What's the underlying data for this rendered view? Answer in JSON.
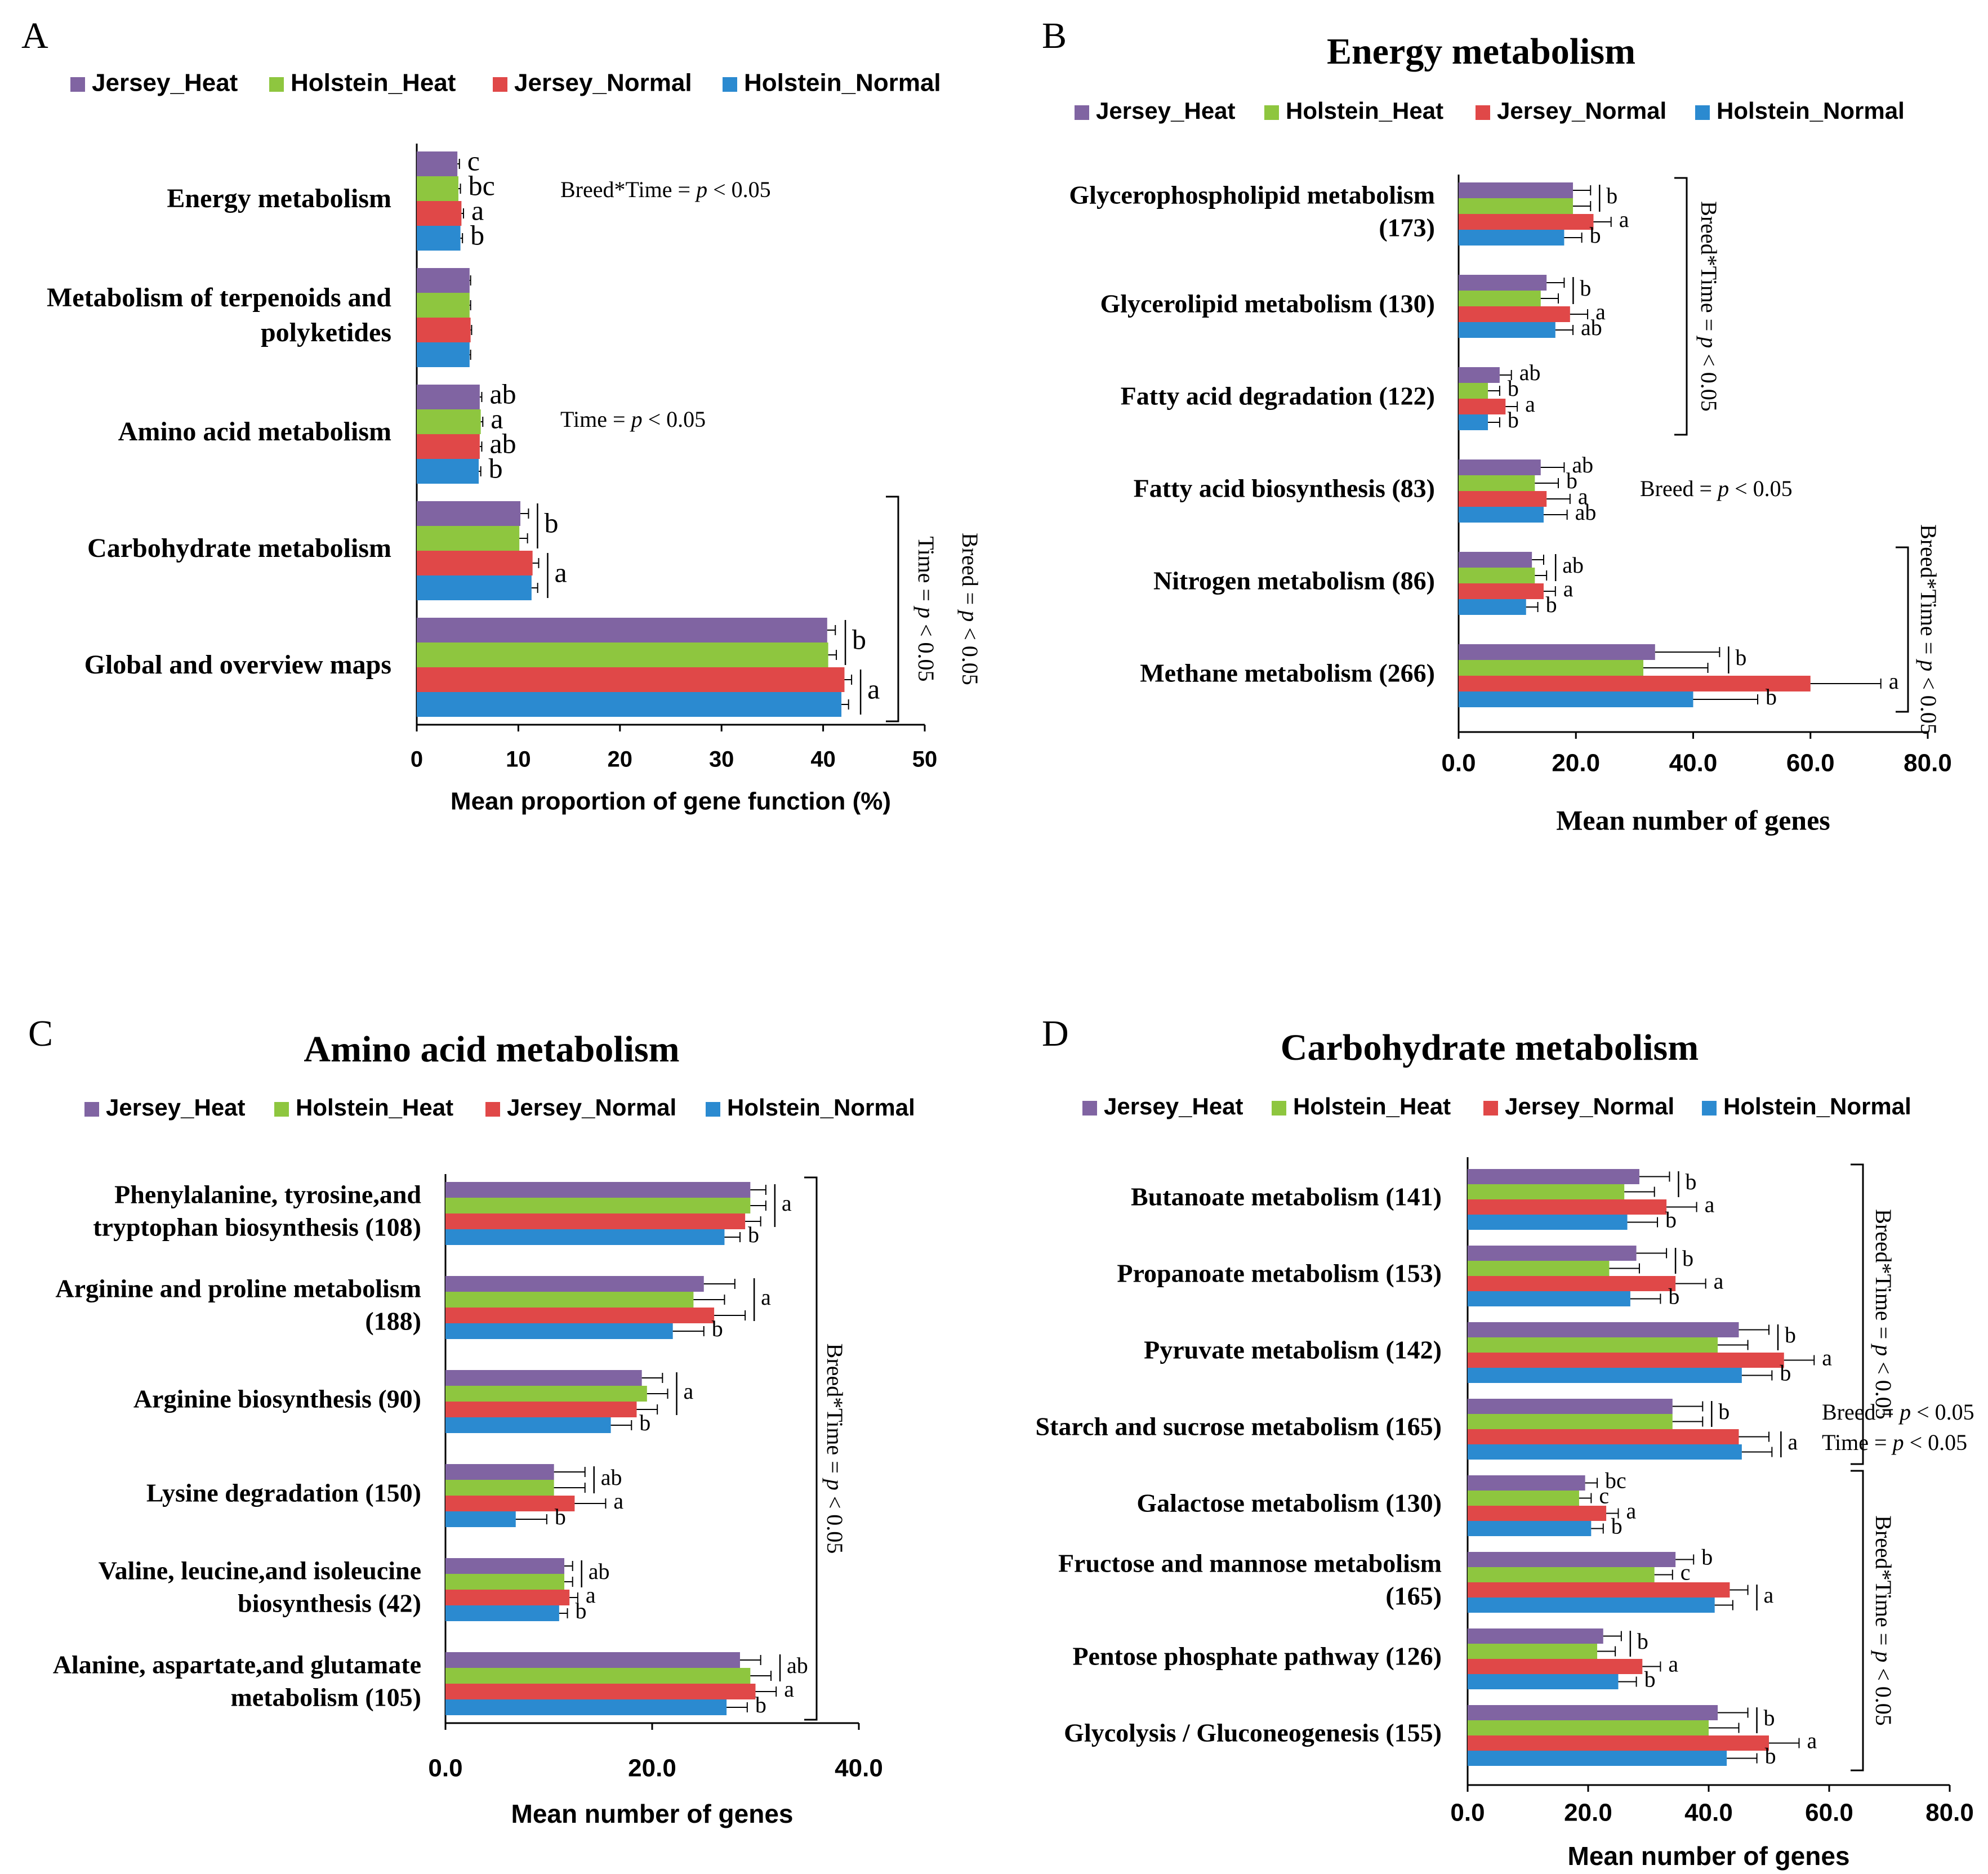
{
  "colors": {
    "Jersey_Heat": "#8064a2",
    "Holstein_Heat": "#8ec63f",
    "Jersey_Normal": "#e04848",
    "Holstein_Normal": "#2b8ad0",
    "axis": "#000000",
    "text": "#000000"
  },
  "chart_data": [
    {
      "panel": "A",
      "type": "bar",
      "orientation": "horizontal",
      "title": "",
      "xlabel": "Mean proportion of gene function (%)",
      "ylabel": "",
      "xlim": [
        0,
        50
      ],
      "xticks": [
        0,
        10,
        20,
        30,
        40,
        50
      ],
      "tick_labels": [
        "0",
        "10",
        "20",
        "30",
        "40",
        "50"
      ],
      "legend": [
        "Jersey_Heat",
        "Holstein_Heat",
        "Jersey_Normal",
        "Holstein_Normal"
      ],
      "legend_position": "top",
      "categories": [
        {
          "label_lines": [
            "Energy metabolism"
          ],
          "values": [
            4.0,
            4.1,
            4.4,
            4.3
          ],
          "errors": [
            0.2,
            0.2,
            0.2,
            0.2
          ],
          "letters": [
            "c",
            "bc",
            "a",
            "b"
          ],
          "groups": []
        },
        {
          "label_lines": [
            "Metabolism of terpenoids and",
            "polyketides"
          ],
          "values": [
            5.2,
            5.2,
            5.3,
            5.2
          ],
          "errors": [
            0.1,
            0.1,
            0.1,
            0.1
          ],
          "letters": [
            "",
            "",
            "",
            ""
          ],
          "groups": []
        },
        {
          "label_lines": [
            "Amino acid metabolism"
          ],
          "values": [
            6.2,
            6.3,
            6.2,
            6.1
          ],
          "errors": [
            0.2,
            0.2,
            0.2,
            0.2
          ],
          "letters": [
            "ab",
            "a",
            "ab",
            "b"
          ],
          "groups": []
        },
        {
          "label_lines": [
            "Carbohydrate metabolism"
          ],
          "values": [
            10.2,
            10.1,
            11.4,
            11.3
          ],
          "errors": [
            0.8,
            0.8,
            0.6,
            0.6
          ],
          "letters": [
            "",
            "",
            "",
            ""
          ],
          "groups": [
            {
              "start": 0,
              "end": 1,
              "letter": "b"
            },
            {
              "start": 2,
              "end": 3,
              "letter": "a"
            }
          ]
        },
        {
          "label_lines": [
            "Global and overview maps"
          ],
          "values": [
            40.4,
            40.5,
            42.1,
            41.8
          ],
          "errors": [
            0.8,
            0.8,
            0.7,
            0.7
          ],
          "letters": [
            "",
            "",
            "",
            ""
          ],
          "groups": [
            {
              "start": 0,
              "end": 1,
              "letter": "b"
            },
            {
              "start": 2,
              "end": 3,
              "letter": "a"
            }
          ]
        }
      ],
      "annotations": [
        {
          "text": "Breed*Time = p < 0.05",
          "category": 0
        },
        {
          "text": "Time = p < 0.05",
          "category": 2
        }
      ],
      "significance_brackets": [
        {
          "from": 3,
          "to": 4,
          "texts": [
            "Time = p < 0.05",
            "Breed = p < 0.05"
          ]
        }
      ]
    },
    {
      "panel": "B",
      "type": "bar",
      "orientation": "horizontal",
      "title": "Energy metabolism",
      "xlabel": "Mean number of genes",
      "ylabel": "",
      "xlim": [
        0,
        80
      ],
      "xticks": [
        0,
        20,
        40,
        60,
        80
      ],
      "tick_labels": [
        "0.0",
        "20.0",
        "40.0",
        "60.0",
        "80.0"
      ],
      "legend": [
        "Jersey_Heat",
        "Holstein_Heat",
        "Jersey_Normal",
        "Holstein_Normal"
      ],
      "legend_position": "top",
      "categories": [
        {
          "label_lines": [
            "Glycerophospholipid metabolism",
            "(173)"
          ],
          "values": [
            19.5,
            19.5,
            23,
            18
          ],
          "errors": [
            3,
            3,
            3,
            3
          ],
          "letters": [
            "",
            "",
            "a",
            "b"
          ],
          "groups": [
            {
              "start": 0,
              "end": 1,
              "letter": "b"
            }
          ]
        },
        {
          "label_lines": [
            "Glycerolipid metabolism (130)"
          ],
          "values": [
            15,
            14,
            19,
            16.5
          ],
          "errors": [
            3,
            3,
            3,
            3
          ],
          "letters": [
            "",
            "",
            "a",
            "ab"
          ],
          "groups": [
            {
              "start": 0,
              "end": 1,
              "letter": "b"
            }
          ]
        },
        {
          "label_lines": [
            "Fatty acid degradation (122)"
          ],
          "values": [
            7,
            5,
            8,
            5
          ],
          "errors": [
            2,
            2,
            2,
            2
          ],
          "letters": [
            "ab",
            "b",
            "a",
            "b"
          ],
          "groups": []
        },
        {
          "label_lines": [
            "Fatty acid biosynthesis (83)"
          ],
          "values": [
            14,
            13,
            15,
            14.5
          ],
          "errors": [
            4,
            4,
            4,
            4
          ],
          "letters": [
            "ab",
            "b",
            "a",
            "ab"
          ],
          "groups": []
        },
        {
          "label_lines": [
            "Nitrogen metabolism (86)"
          ],
          "values": [
            12.5,
            13,
            14.5,
            11.5
          ],
          "errors": [
            2,
            2,
            2,
            2
          ],
          "letters": [
            "",
            "",
            "a",
            "b"
          ],
          "groups": [
            {
              "start": 0,
              "end": 1,
              "letter": "ab"
            }
          ]
        },
        {
          "label_lines": [
            "Methane metabolism (266)"
          ],
          "values": [
            33.5,
            31.5,
            60,
            40
          ],
          "errors": [
            11,
            11,
            12,
            11
          ],
          "letters": [
            "",
            "",
            "a",
            "b"
          ],
          "groups": [
            {
              "start": 0,
              "end": 1,
              "letter": "b"
            }
          ]
        }
      ],
      "annotations": [
        {
          "text": "Breed = p < 0.05",
          "category": 3
        }
      ],
      "significance_brackets": [
        {
          "from": 0,
          "to": 2,
          "texts": [
            "Breed*Time = p < 0.05"
          ]
        },
        {
          "from": 4,
          "to": 5,
          "texts": [
            "Breed*Time = p < 0.05"
          ]
        }
      ]
    },
    {
      "panel": "C",
      "type": "bar",
      "orientation": "horizontal",
      "title": "Amino acid metabolism",
      "xlabel": "Mean number of genes",
      "ylabel": "",
      "xlim": [
        0,
        40
      ],
      "xticks": [
        0,
        20,
        40
      ],
      "tick_labels": [
        "0.0",
        "20.0",
        "40.0"
      ],
      "legend": [
        "Jersey_Heat",
        "Holstein_Heat",
        "Jersey_Normal",
        "Holstein_Normal"
      ],
      "legend_position": "top",
      "categories": [
        {
          "label_lines": [
            "Phenylalanine, tyrosine,and",
            "tryptophan biosynthesis (108)"
          ],
          "values": [
            29.5,
            29.5,
            29,
            27
          ],
          "errors": [
            1.5,
            1.5,
            1.5,
            1.5
          ],
          "letters": [
            "",
            "",
            "",
            "b"
          ],
          "groups": [
            {
              "start": 0,
              "end": 2,
              "letter": "a"
            }
          ]
        },
        {
          "label_lines": [
            "Arginine and proline metabolism",
            "(188)"
          ],
          "values": [
            25,
            24,
            26,
            22
          ],
          "errors": [
            3,
            3,
            3,
            3
          ],
          "letters": [
            "",
            "",
            "",
            "b"
          ],
          "groups": [
            {
              "start": 0,
              "end": 2,
              "letter": "a"
            }
          ]
        },
        {
          "label_lines": [
            "Arginine biosynthesis (90)"
          ],
          "values": [
            19,
            19.5,
            18.5,
            16
          ],
          "errors": [
            2,
            2,
            2,
            2
          ],
          "letters": [
            "",
            "",
            "",
            "b"
          ],
          "groups": [
            {
              "start": 0,
              "end": 2,
              "letter": "a"
            }
          ]
        },
        {
          "label_lines": [
            "Lysine degradation (150)"
          ],
          "values": [
            10.5,
            10.5,
            12.5,
            6.8
          ],
          "errors": [
            3,
            3,
            3,
            3
          ],
          "letters": [
            "",
            "",
            "a",
            "b"
          ],
          "groups": [
            {
              "start": 0,
              "end": 1,
              "letter": "ab"
            }
          ]
        },
        {
          "label_lines": [
            "Valine, leucine,and isoleucine",
            "biosynthesis (42)"
          ],
          "values": [
            11.5,
            11.5,
            12,
            11
          ],
          "errors": [
            0.8,
            0.8,
            0.8,
            0.8
          ],
          "letters": [
            "",
            "",
            "a",
            "b"
          ],
          "groups": [
            {
              "start": 0,
              "end": 1,
              "letter": "ab"
            }
          ]
        },
        {
          "label_lines": [
            "Alanine, aspartate,and glutamate",
            "metabolism (105)"
          ],
          "values": [
            28.5,
            29.5,
            30,
            27.2
          ],
          "errors": [
            2,
            2,
            2,
            2
          ],
          "letters": [
            "",
            "",
            "a",
            "b"
          ],
          "groups": [
            {
              "start": 0,
              "end": 1,
              "letter": "ab"
            }
          ]
        }
      ],
      "annotations": [],
      "significance_brackets": [
        {
          "from": 0,
          "to": 5,
          "texts": [
            "Breed*Time = p < 0.05"
          ]
        }
      ]
    },
    {
      "panel": "D",
      "type": "bar",
      "orientation": "horizontal",
      "title": "Carbohydrate metabolism",
      "xlabel": "Mean number of genes",
      "ylabel": "",
      "xlim": [
        0,
        80
      ],
      "xticks": [
        0,
        20,
        40,
        60,
        80
      ],
      "tick_labels": [
        "0.0",
        "20.0",
        "40.0",
        "60.0",
        "80.0"
      ],
      "legend": [
        "Jersey_Heat",
        "Holstein_Heat",
        "Jersey_Normal",
        "Holstein_Normal"
      ],
      "legend_position": "top",
      "categories": [
        {
          "label_lines": [
            "Butanoate metabolism (141)"
          ],
          "values": [
            28.5,
            26,
            33,
            26.5
          ],
          "errors": [
            5,
            5,
            5,
            5
          ],
          "letters": [
            "",
            "",
            "a",
            "b"
          ],
          "groups": [
            {
              "start": 0,
              "end": 1,
              "letter": "b"
            }
          ]
        },
        {
          "label_lines": [
            "Propanoate metabolism (153)"
          ],
          "values": [
            28,
            23.5,
            34.5,
            27
          ],
          "errors": [
            5,
            5,
            5,
            5
          ],
          "letters": [
            "",
            "",
            "a",
            "b"
          ],
          "groups": [
            {
              "start": 0,
              "end": 1,
              "letter": "b"
            }
          ]
        },
        {
          "label_lines": [
            "Pyruvate metabolism (142)"
          ],
          "values": [
            45,
            41.5,
            52.5,
            45.5
          ],
          "errors": [
            5,
            5,
            5,
            5
          ],
          "letters": [
            "",
            "",
            "a",
            "b"
          ],
          "groups": [
            {
              "start": 0,
              "end": 1,
              "letter": "b"
            }
          ]
        },
        {
          "label_lines": [
            "Starch and sucrose metabolism (165)"
          ],
          "values": [
            34,
            34,
            45,
            45.5
          ],
          "errors": [
            5,
            5,
            5,
            5
          ],
          "letters": [
            "",
            "",
            "",
            ""
          ],
          "groups": [
            {
              "start": 0,
              "end": 1,
              "letter": "b"
            },
            {
              "start": 2,
              "end": 3,
              "letter": "a"
            }
          ]
        },
        {
          "label_lines": [
            "Galactose metabolism (130)"
          ],
          "values": [
            19.5,
            18.5,
            23,
            20.5
          ],
          "errors": [
            2,
            2,
            2,
            2
          ],
          "letters": [
            "bc",
            "c",
            "a",
            "b"
          ],
          "groups": []
        },
        {
          "label_lines": [
            "Fructose and mannose metabolism",
            "(165)"
          ],
          "values": [
            34.5,
            31,
            43.5,
            41
          ],
          "errors": [
            3,
            3,
            3,
            3
          ],
          "letters": [
            "b",
            "c",
            "",
            ""
          ],
          "groups": [
            {
              "start": 2,
              "end": 3,
              "letter": "a"
            }
          ]
        },
        {
          "label_lines": [
            "Pentose phosphate pathway (126)"
          ],
          "values": [
            22.5,
            21.5,
            29,
            25
          ],
          "errors": [
            3,
            3,
            3,
            3
          ],
          "letters": [
            "",
            "",
            "a",
            "b"
          ],
          "groups": [
            {
              "start": 0,
              "end": 1,
              "letter": "b"
            }
          ]
        },
        {
          "label_lines": [
            "Glycolysis / Gluconeogenesis (155)"
          ],
          "values": [
            41.5,
            40,
            50,
            43
          ],
          "errors": [
            5,
            5,
            5,
            5
          ],
          "letters": [
            "",
            "",
            "a",
            "b"
          ],
          "groups": [
            {
              "start": 0,
              "end": 1,
              "letter": "b"
            }
          ]
        }
      ],
      "annotations": [
        {
          "text": "Breed = p < 0.05",
          "category": 3
        },
        {
          "text": "Time = p < 0.05",
          "category": 3
        }
      ],
      "significance_brackets": [
        {
          "from": 0,
          "to": 3,
          "texts": [
            "Breed*Time = p < 0.05"
          ]
        },
        {
          "from": 4,
          "to": 7,
          "texts": [
            "Breed*Time = p < 0.05"
          ]
        }
      ]
    }
  ]
}
